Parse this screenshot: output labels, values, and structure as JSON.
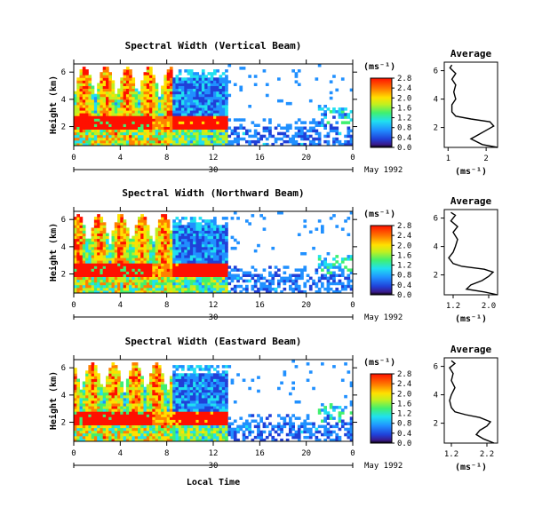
{
  "chart_data": [
    {
      "type": "heatmap",
      "title": "Spectral Width (Vertical Beam)",
      "ylabel": "Height (km)",
      "x_ticks": [
        "0",
        "4",
        "8",
        "12",
        "16",
        "20",
        "0"
      ],
      "x_range": [
        0,
        24
      ],
      "y_ticks": [
        "2",
        "4",
        "6"
      ],
      "y_range": [
        0.6,
        6.6
      ],
      "day_label": "30",
      "date_label": "May 1992",
      "colorbar": {
        "unit": "(ms⁻¹)",
        "ticks": [
          "0.0",
          "0.4",
          "0.8",
          "1.2",
          "1.6",
          "2.0",
          "2.4",
          "2.8"
        ]
      },
      "average": {
        "title": "Average",
        "xlabel": "(ms⁻¹)",
        "x_ticks": [
          "1",
          "2"
        ],
        "x_range": [
          0.9,
          2.3
        ],
        "y_ticks": [
          "2",
          "4",
          "6"
        ],
        "profile": [
          [
            0.6,
            2.3
          ],
          [
            0.8,
            1.9
          ],
          [
            1.2,
            1.6
          ],
          [
            1.5,
            1.8
          ],
          [
            1.8,
            2.0
          ],
          [
            2.1,
            2.2
          ],
          [
            2.4,
            2.1
          ],
          [
            2.6,
            1.6
          ],
          [
            2.8,
            1.2
          ],
          [
            3.1,
            1.1
          ],
          [
            3.6,
            1.1
          ],
          [
            4.0,
            1.2
          ],
          [
            4.5,
            1.15
          ],
          [
            5.0,
            1.2
          ],
          [
            5.4,
            1.1
          ],
          [
            5.8,
            1.2
          ],
          [
            6.2,
            1.05
          ],
          [
            6.4,
            1.1
          ]
        ]
      }
    },
    {
      "type": "heatmap",
      "title": "Spectral Width (Northward Beam)",
      "ylabel": "Height (km)",
      "x_ticks": [
        "0",
        "4",
        "8",
        "12",
        "16",
        "20",
        "0"
      ],
      "x_range": [
        0,
        24
      ],
      "y_ticks": [
        "2",
        "4",
        "6"
      ],
      "y_range": [
        0.6,
        6.6
      ],
      "day_label": "30",
      "date_label": "May 1992",
      "colorbar": {
        "unit": "(ms⁻¹)",
        "ticks": [
          "0.0",
          "0.4",
          "0.8",
          "1.2",
          "1.6",
          "2.0",
          "2.4",
          "2.8"
        ]
      },
      "average": {
        "title": "Average",
        "xlabel": "(ms⁻¹)",
        "x_ticks": [
          "1.2",
          "2.0"
        ],
        "x_range": [
          1.0,
          2.2
        ],
        "y_ticks": [
          "2",
          "4",
          "6"
        ],
        "profile": [
          [
            0.6,
            2.2
          ],
          [
            0.8,
            1.9
          ],
          [
            1.0,
            1.5
          ],
          [
            1.3,
            1.6
          ],
          [
            1.6,
            1.85
          ],
          [
            1.9,
            2.0
          ],
          [
            2.2,
            2.1
          ],
          [
            2.4,
            1.9
          ],
          [
            2.6,
            1.4
          ],
          [
            2.8,
            1.2
          ],
          [
            3.2,
            1.1
          ],
          [
            3.6,
            1.2
          ],
          [
            4.0,
            1.25
          ],
          [
            4.5,
            1.3
          ],
          [
            5.0,
            1.2
          ],
          [
            5.4,
            1.3
          ],
          [
            5.8,
            1.15
          ],
          [
            6.2,
            1.25
          ],
          [
            6.4,
            1.15
          ]
        ]
      }
    },
    {
      "type": "heatmap",
      "title": "Spectral Width (Eastward Beam)",
      "ylabel": "Height (km)",
      "x_ticks": [
        "0",
        "4",
        "8",
        "12",
        "16",
        "20",
        "0"
      ],
      "x_range": [
        0,
        24
      ],
      "y_ticks": [
        "2",
        "4",
        "6"
      ],
      "y_range": [
        0.6,
        6.6
      ],
      "day_label": "30",
      "date_label": "May 1992",
      "xlabel": "Local Time",
      "colorbar": {
        "unit": "(ms⁻¹)",
        "ticks": [
          "0.0",
          "0.4",
          "0.8",
          "1.2",
          "1.6",
          "2.0",
          "2.4",
          "2.8"
        ]
      },
      "average": {
        "title": "Average",
        "xlabel": "(ms⁻¹)",
        "x_ticks": [
          "1.2",
          "2.2"
        ],
        "x_range": [
          1.0,
          2.5
        ],
        "y_ticks": [
          "2",
          "4",
          "6"
        ],
        "profile": [
          [
            0.6,
            2.4
          ],
          [
            0.9,
            2.1
          ],
          [
            1.2,
            1.9
          ],
          [
            1.5,
            2.0
          ],
          [
            1.8,
            2.2
          ],
          [
            2.1,
            2.3
          ],
          [
            2.4,
            2.0
          ],
          [
            2.6,
            1.6
          ],
          [
            2.8,
            1.3
          ],
          [
            3.1,
            1.2
          ],
          [
            3.6,
            1.15
          ],
          [
            4.0,
            1.2
          ],
          [
            4.5,
            1.3
          ],
          [
            5.0,
            1.2
          ],
          [
            5.5,
            1.25
          ],
          [
            5.9,
            1.15
          ],
          [
            6.2,
            1.3
          ],
          [
            6.4,
            1.2
          ]
        ]
      }
    }
  ]
}
